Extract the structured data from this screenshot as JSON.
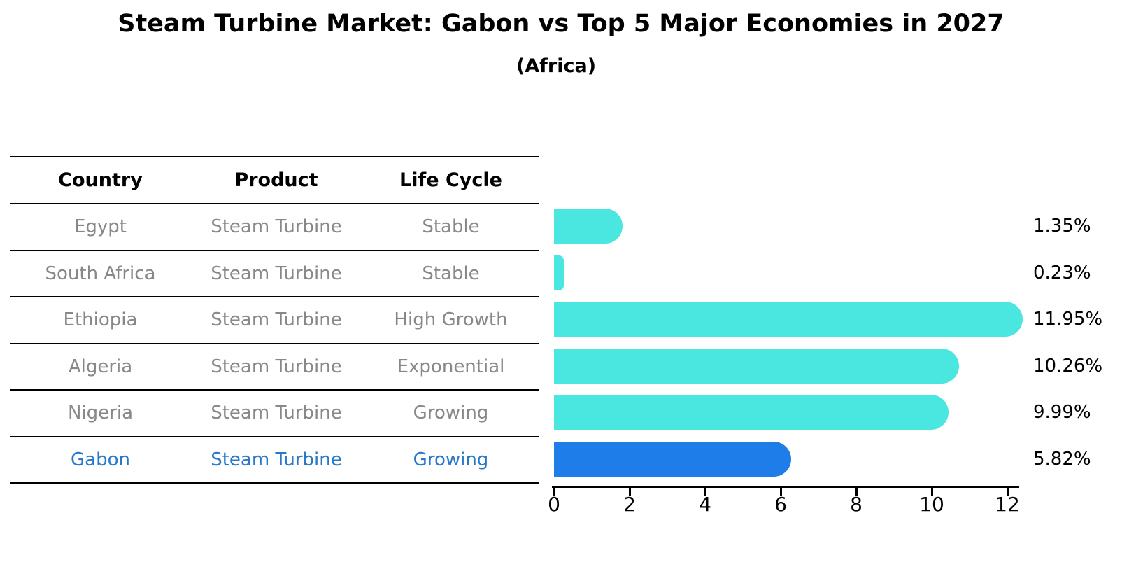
{
  "title": "Steam Turbine Market: Gabon vs Top 5 Major Economies in 2027",
  "subtitle": "(Africa)",
  "table": {
    "headers": [
      "Country",
      "Product",
      "Life Cycle"
    ],
    "rows": [
      {
        "country": "Egypt",
        "product": "Steam Turbine",
        "life_cycle": "Stable",
        "highlight": false
      },
      {
        "country": "South Africa",
        "product": "Steam Turbine",
        "life_cycle": "Stable",
        "highlight": false
      },
      {
        "country": "Ethiopia",
        "product": "Steam Turbine",
        "life_cycle": "High Growth",
        "highlight": false
      },
      {
        "country": "Algeria",
        "product": "Steam Turbine",
        "life_cycle": "Exponential",
        "highlight": false
      },
      {
        "country": "Nigeria",
        "product": "Steam Turbine",
        "life_cycle": "Growing",
        "highlight": false
      },
      {
        "country": "Gabon",
        "product": "Steam Turbine",
        "life_cycle": "Growing",
        "highlight": true
      }
    ]
  },
  "chart_data": {
    "type": "bar",
    "orientation": "horizontal",
    "title": "Steam Turbine Market: Gabon vs Top 5 Major Economies in 2027 (Africa)",
    "categories": [
      "Egypt",
      "South Africa",
      "Ethiopia",
      "Algeria",
      "Nigeria",
      "Gabon"
    ],
    "values": [
      1.35,
      0.23,
      11.95,
      10.26,
      9.99,
      5.82
    ],
    "value_labels": [
      "1.35%",
      "0.23%",
      "11.95%",
      "10.26%",
      "9.99%",
      "5.82%"
    ],
    "x_ticks": [
      "0",
      "2",
      "4",
      "6",
      "8",
      "10",
      "12"
    ],
    "x_tick_values": [
      0,
      2,
      4,
      6,
      8,
      10,
      12
    ],
    "xlim": [
      0,
      12.3
    ],
    "grid": false,
    "legend": "none",
    "bar_color": "#4AE7E0",
    "highlight_color": "#1E7DE8",
    "highlight_text_color": "#2878C8",
    "highlight_index": 5
  },
  "colors": {
    "background": "#ffffff",
    "table_text": "#888888",
    "header_text": "#000000",
    "axis": "#000000"
  }
}
